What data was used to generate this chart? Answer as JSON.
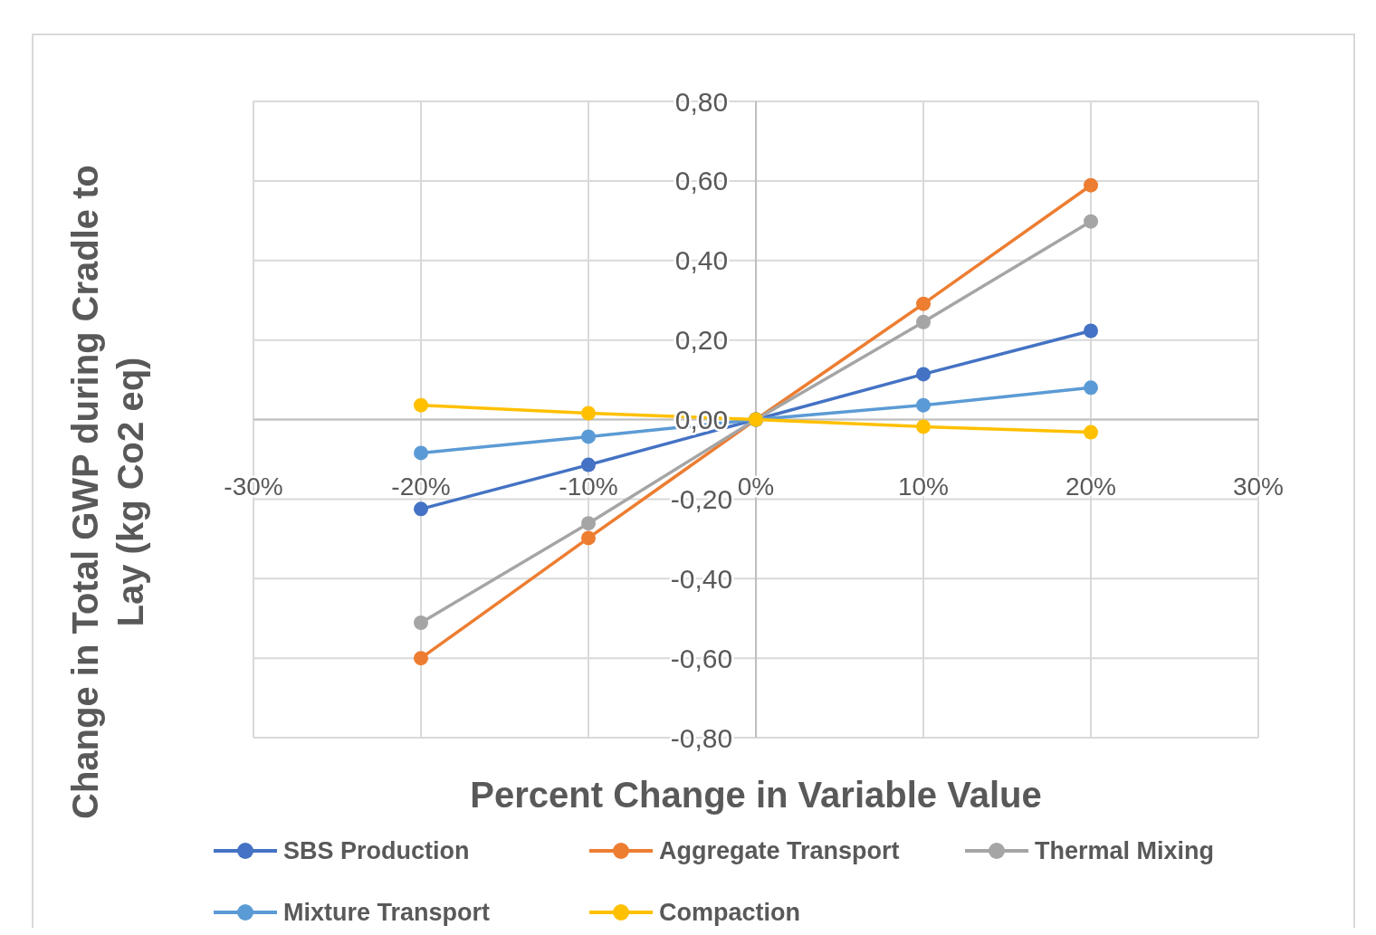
{
  "chart_data": {
    "type": "line",
    "xlabel": "Percent Change in Variable Value",
    "ylabel": "Change in Total  GWP  during Cradle to Lay  (kg Co2 eq)",
    "x": [
      -0.2,
      -0.1,
      0,
      0.1,
      0.2
    ],
    "xlim": [
      -0.3,
      0.3
    ],
    "xticks": [
      {
        "value": -0.3,
        "label": "-30%"
      },
      {
        "value": -0.2,
        "label": "-20%"
      },
      {
        "value": -0.1,
        "label": "-10%"
      },
      {
        "value": 0,
        "label": "0%"
      },
      {
        "value": 0.1,
        "label": "10%"
      },
      {
        "value": 0.2,
        "label": "20%"
      },
      {
        "value": 0.3,
        "label": "30%"
      }
    ],
    "ylim": [
      -0.8,
      0.8
    ],
    "yticks": [
      {
        "value": -0.8,
        "label": "-0,80"
      },
      {
        "value": -0.6,
        "label": "-0,60"
      },
      {
        "value": -0.4,
        "label": "-0,40"
      },
      {
        "value": -0.2,
        "label": "-0,20"
      },
      {
        "value": 0,
        "label": "0,00"
      },
      {
        "value": 0.2,
        "label": "0,20"
      },
      {
        "value": 0.4,
        "label": "0,40"
      },
      {
        "value": 0.6,
        "label": "0,60"
      },
      {
        "value": 0.8,
        "label": "0,80"
      }
    ],
    "grid": true,
    "legend": "bottom",
    "marker": "circle",
    "line_style": "solid",
    "series": [
      {
        "name": "SBS Production",
        "color": "#4472c4",
        "values": [
          -0.225,
          -0.114,
          0,
          0.114,
          0.223
        ]
      },
      {
        "name": "Aggregate Transport",
        "color": "#ed7d31",
        "values": [
          -0.6,
          -0.298,
          0,
          0.291,
          0.589
        ]
      },
      {
        "name": "Thermal Mixing",
        "color": "#a5a5a5",
        "values": [
          -0.511,
          -0.261,
          0,
          0.245,
          0.498
        ]
      },
      {
        "name": "Mixture Transport",
        "color": "#5b9bd5",
        "values": [
          -0.084,
          -0.043,
          0,
          0.036,
          0.08
        ]
      },
      {
        "name": "Compaction",
        "color": "#ffc000",
        "values": [
          0.036,
          0.016,
          0,
          -0.018,
          -0.032
        ]
      }
    ]
  }
}
